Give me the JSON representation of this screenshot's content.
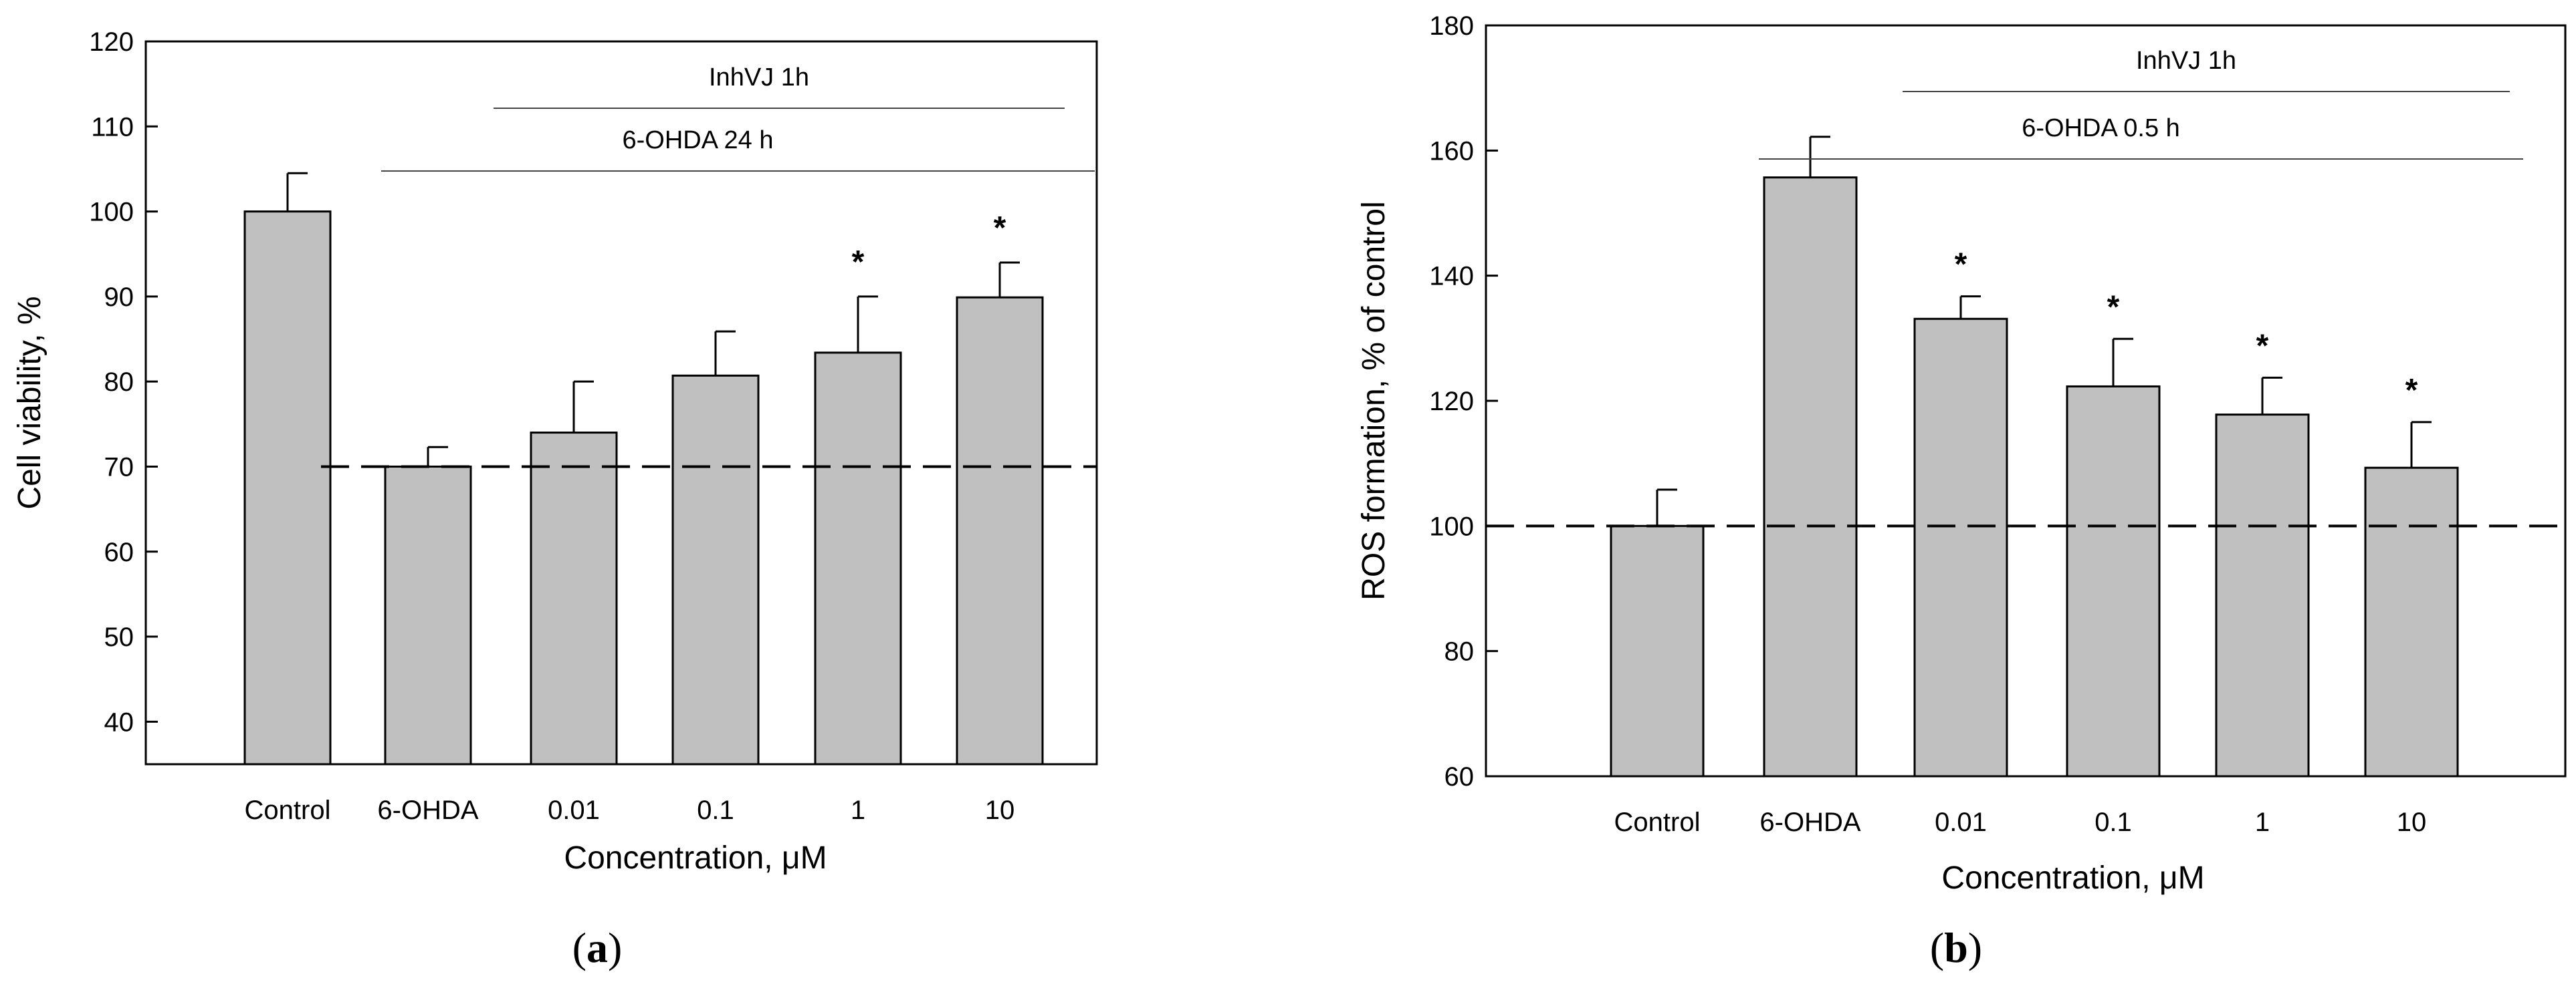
{
  "chart_data": [
    {
      "type": "bar",
      "panel_label": "a",
      "title": "",
      "xlabel": "Concentration, μM",
      "ylabel": "Cell viability, %",
      "categories": [
        "Control",
        "6-OHDA",
        "0.01",
        "0.1",
        "1",
        "10"
      ],
      "values": [
        100,
        70,
        74,
        80.7,
        83.4,
        89.9
      ],
      "errors": [
        4.5,
        2.3,
        6,
        5.2,
        6.6,
        4.1
      ],
      "significance": [
        "",
        "",
        "",
        "",
        "*",
        "*"
      ],
      "ylim": [
        35,
        120
      ],
      "yticks": [
        40,
        50,
        60,
        70,
        80,
        90,
        100,
        110,
        120
      ],
      "reference_line": 70,
      "annotations": [
        {
          "label": "InhVJ 1h",
          "from_category": 2,
          "to_category": 5
        },
        {
          "label": "6-OHDA 24 h",
          "from_category": 1,
          "to_category": 5
        }
      ],
      "bar_color": "#c0c0c0"
    },
    {
      "type": "bar",
      "panel_label": "b",
      "title": "",
      "xlabel": "Concentration, μM",
      "ylabel": "ROS formation, % of control",
      "categories": [
        "Control",
        "6-OHDA",
        "0.01",
        "0.1",
        "1",
        "10"
      ],
      "values": [
        100,
        155.7,
        133.1,
        122.3,
        117.8,
        109.3
      ],
      "errors": [
        5.8,
        6.5,
        3.6,
        7.6,
        5.9,
        7.3
      ],
      "significance": [
        "",
        "",
        "*",
        "*",
        "*",
        "*"
      ],
      "ylim": [
        60,
        180
      ],
      "yticks": [
        60,
        80,
        100,
        120,
        140,
        160,
        180
      ],
      "reference_line": 100,
      "annotations": [
        {
          "label": "InhVJ 1h",
          "from_category": 2,
          "to_category": 5
        },
        {
          "label": "6-OHDA 0.5 h",
          "from_category": 1,
          "to_category": 5
        }
      ],
      "bar_color": "#c0c0c0"
    }
  ]
}
